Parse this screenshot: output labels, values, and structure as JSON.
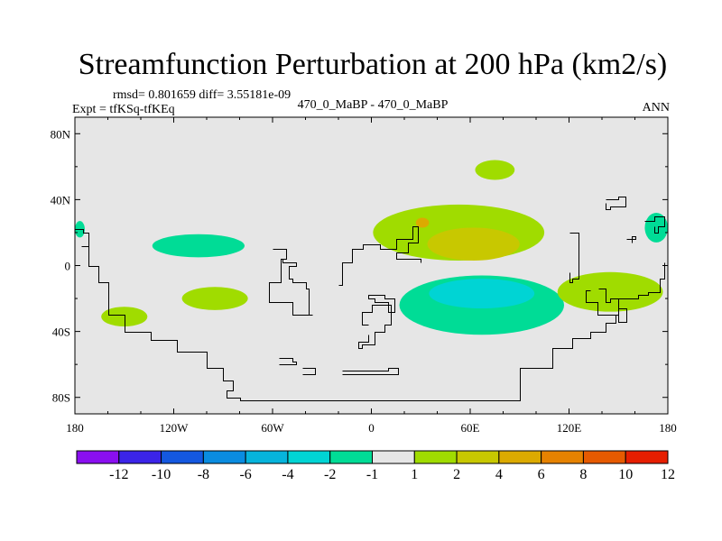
{
  "chart_data": {
    "type": "heatmap",
    "title": "Streamfunction Perturbation at 200 hPa (km2/s)",
    "stats_line": "rmsd= 0.801659 diff= 3.55181e-09",
    "experiment_label": "Expt = tfKSq-tfKEq",
    "case_label": "470_0_MaBP - 470_0_MaBP",
    "season_label": "ANN",
    "x_axis": {
      "range": [
        -180,
        180
      ],
      "ticks": [
        -180,
        -120,
        -60,
        0,
        60,
        120,
        180
      ],
      "tick_labels": [
        "180",
        "120W",
        "60W",
        "0",
        "60E",
        "120E",
        "180"
      ]
    },
    "y_axis": {
      "range": [
        -90,
        90
      ],
      "ticks": [
        80,
        40,
        0,
        -40,
        -80
      ],
      "tick_labels": [
        "80N",
        "40N",
        "0",
        "40S",
        "80S"
      ]
    },
    "colorbar": {
      "levels": [
        -12,
        -10,
        -8,
        -6,
        -4,
        -2,
        -1,
        1,
        2,
        4,
        6,
        8,
        10,
        12
      ],
      "labels": [
        "-12",
        "-10",
        "-8",
        "-6",
        "-4",
        "-2",
        "-1",
        "1",
        "2",
        "4",
        "6",
        "8",
        "10",
        "12"
      ],
      "colors": [
        "#8a0ff0",
        "#3b24e8",
        "#1458e0",
        "#0a8ce0",
        "#06b4dc",
        "#00d4d4",
        "#00dc96",
        "#e6e6e6",
        "#a0dc00",
        "#c8c800",
        "#dcaa00",
        "#e68200",
        "#e65a00",
        "#e61e00"
      ]
    },
    "anomaly_regions": [
      {
        "center_lon": -177,
        "center_lat": 22,
        "half_width_lon": 3,
        "half_width_lat": 5,
        "value": -1.5
      },
      {
        "center_lon": -105,
        "center_lat": 12,
        "half_width_lon": 28,
        "half_width_lat": 7,
        "value": -1.5
      },
      {
        "center_lon": -95,
        "center_lat": -20,
        "half_width_lon": 20,
        "half_width_lat": 7,
        "value": 1.5
      },
      {
        "center_lon": -150,
        "center_lat": -31,
        "half_width_lon": 14,
        "half_width_lat": 6,
        "value": 1.5
      },
      {
        "center_lon": 53,
        "center_lat": 20,
        "half_width_lon": 52,
        "half_width_lat": 17,
        "value": 1.5
      },
      {
        "center_lon": 62,
        "center_lat": 13,
        "half_width_lon": 28,
        "half_width_lat": 10,
        "value": 3
      },
      {
        "center_lon": 31,
        "center_lat": 26,
        "half_width_lon": 4,
        "half_width_lat": 3,
        "value": 4.5
      },
      {
        "center_lon": 75,
        "center_lat": 58,
        "half_width_lon": 12,
        "half_width_lat": 6,
        "value": 1.5
      },
      {
        "center_lon": 67,
        "center_lat": -24,
        "half_width_lon": 50,
        "half_width_lat": 18,
        "value": -1.5
      },
      {
        "center_lon": 67,
        "center_lat": -17,
        "half_width_lon": 32,
        "half_width_lat": 9,
        "value": -3
      },
      {
        "center_lon": 145,
        "center_lat": -16,
        "half_width_lon": 32,
        "half_width_lat": 12,
        "value": 1.5
      },
      {
        "center_lon": 173,
        "center_lat": 23,
        "half_width_lon": 7,
        "half_width_lat": 9,
        "value": -1.5
      }
    ],
    "coastlines": [
      [
        [
          -180,
          22
        ],
        [
          -175,
          20
        ],
        [
          -172,
          0
        ],
        [
          -166,
          -10
        ],
        [
          -160,
          -30
        ],
        [
          -150,
          -40
        ],
        [
          -134,
          -45
        ],
        [
          -118,
          -52
        ],
        [
          -100,
          -62
        ],
        [
          -90,
          -70
        ],
        [
          -84,
          -76
        ],
        [
          -88,
          -80
        ],
        [
          -80,
          -82
        ],
        [
          -32,
          -82
        ],
        [
          20,
          -82
        ],
        [
          90,
          -82
        ],
        [
          90,
          -62
        ],
        [
          110,
          -50
        ],
        [
          122,
          -44
        ],
        [
          133,
          -40
        ],
        [
          142,
          -35
        ],
        [
          148,
          -30
        ],
        [
          150,
          -20
        ],
        [
          162,
          -18
        ],
        [
          168,
          -16
        ],
        [
          175,
          -8
        ],
        [
          178,
          2
        ]
      ],
      [
        [
          -20,
          -12
        ],
        [
          -18,
          2
        ],
        [
          -12,
          10
        ],
        [
          -5,
          13
        ],
        [
          5,
          10
        ],
        [
          15,
          16
        ],
        [
          25,
          24
        ],
        [
          28,
          14
        ],
        [
          22,
          8
        ],
        [
          15,
          4
        ],
        [
          30,
          2
        ]
      ],
      [
        [
          -60,
          10
        ],
        [
          -52,
          4
        ],
        [
          -55,
          -10
        ],
        [
          -62,
          -22
        ],
        [
          -48,
          -24
        ],
        [
          -48,
          -30
        ],
        [
          -36,
          -30
        ],
        [
          -38,
          -14
        ],
        [
          -40,
          -10
        ],
        [
          -48,
          -8
        ],
        [
          -50,
          0
        ],
        [
          -46,
          2
        ],
        [
          -54,
          4
        ]
      ],
      [
        [
          -2,
          -36
        ],
        [
          -6,
          -28
        ],
        [
          0,
          -24
        ],
        [
          10,
          -28
        ],
        [
          14,
          -20
        ],
        [
          8,
          -18
        ],
        [
          -2,
          -20
        ],
        [
          2,
          -22
        ],
        [
          10,
          -24
        ],
        [
          12,
          -36
        ],
        [
          8,
          -40
        ],
        [
          2,
          -48
        ],
        [
          -6,
          -50
        ],
        [
          -8,
          -46
        ],
        [
          -2,
          -42
        ]
      ],
      [
        [
          133,
          -15
        ],
        [
          130,
          -22
        ],
        [
          137,
          -30
        ],
        [
          150,
          -34
        ],
        [
          155,
          -26
        ],
        [
          150,
          -20
        ],
        [
          145,
          -22
        ],
        [
          142,
          -14
        ],
        [
          138,
          -14
        ]
      ],
      [
        [
          -18,
          -64
        ],
        [
          10,
          -62
        ],
        [
          16,
          -66
        ],
        [
          -18,
          -66
        ]
      ],
      [
        [
          -56,
          -56
        ],
        [
          -48,
          -58
        ],
        [
          -46,
          -60
        ],
        [
          -56,
          -60
        ]
      ],
      [
        [
          -42,
          -62
        ],
        [
          -34,
          -62
        ],
        [
          -34,
          -66
        ],
        [
          -42,
          -66
        ]
      ],
      [
        [
          -176,
          12
        ],
        [
          -172,
          12
        ]
      ],
      [
        [
          142,
          40
        ],
        [
          150,
          42
        ],
        [
          154,
          36
        ],
        [
          145,
          34
        ],
        [
          142,
          38
        ]
      ],
      [
        [
          155,
          16
        ],
        [
          160,
          18
        ],
        [
          158,
          14
        ]
      ],
      [
        [
          166,
          27
        ],
        [
          172,
          30
        ],
        [
          178,
          24
        ],
        [
          174,
          20
        ],
        [
          172,
          24
        ]
      ],
      [
        [
          120,
          20
        ],
        [
          124,
          20
        ],
        [
          126,
          6
        ],
        [
          126,
          -8
        ],
        [
          122,
          -10
        ],
        [
          120,
          -4
        ]
      ]
    ]
  }
}
